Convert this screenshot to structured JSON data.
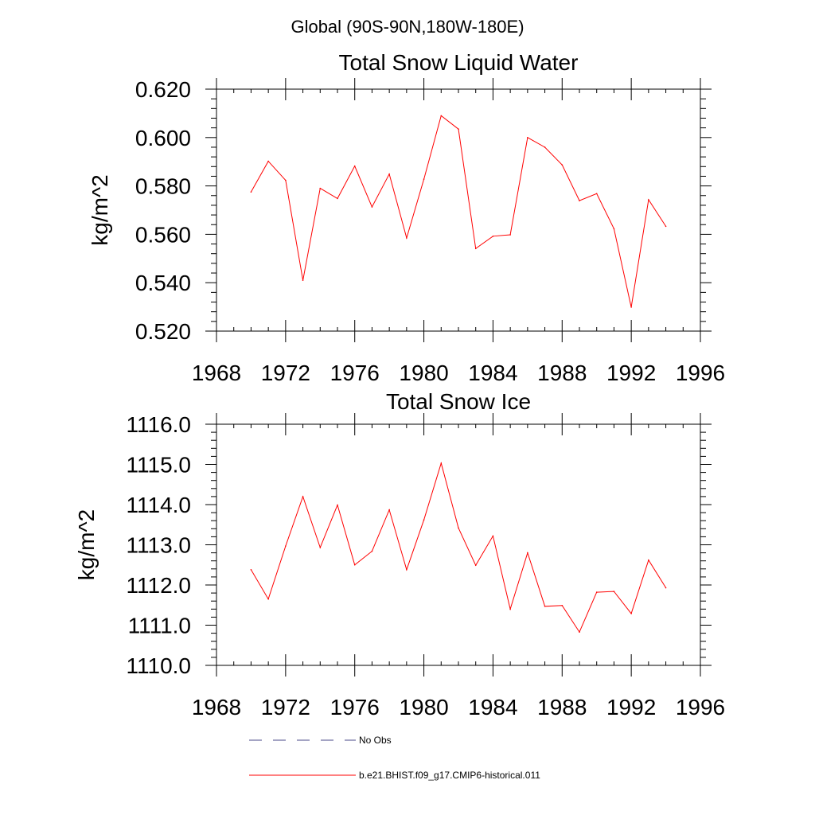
{
  "suptitle": "Global (90S-90N,180W-180E)",
  "colors": {
    "model": "#ff0000",
    "obs": "#4a4a8a",
    "axis": "#000000"
  },
  "legend": {
    "obs_label": "No Obs",
    "model_label": "b.e21.BHIST.f09_g17.CMIP6-historical.011"
  },
  "chart_data": [
    {
      "type": "line",
      "title": "Total Snow Liquid Water",
      "ylabel": "kg/m^2",
      "xlabel": "",
      "xlim": [
        1968,
        1996
      ],
      "ylim": [
        0.52,
        0.62
      ],
      "xticks": [
        1968,
        1972,
        1976,
        1980,
        1984,
        1988,
        1992,
        1996
      ],
      "xtick_labels": [
        "1968",
        "1972",
        "1976",
        "1980",
        "1984",
        "1988",
        "1992",
        "1996"
      ],
      "yticks": [
        0.52,
        0.54,
        0.56,
        0.58,
        0.6,
        0.62
      ],
      "ytick_labels": [
        "0.520",
        "0.540",
        "0.560",
        "0.580",
        "0.600",
        "0.620"
      ],
      "grid": false,
      "series": [
        {
          "name": "b.e21.BHIST.f09_g17.CMIP6-historical.011",
          "x": [
            1970,
            1971,
            1972,
            1973,
            1974,
            1975,
            1976,
            1977,
            1978,
            1979,
            1980,
            1981,
            1982,
            1983,
            1984,
            1985,
            1986,
            1987,
            1988,
            1989,
            1990,
            1991,
            1992,
            1993,
            1994
          ],
          "y": [
            0.5775,
            0.5902,
            0.5823,
            0.541,
            0.579,
            0.5748,
            0.5882,
            0.5713,
            0.5849,
            0.5585,
            0.5828,
            0.609,
            0.6035,
            0.5541,
            0.5592,
            0.5598,
            0.6,
            0.596,
            0.5887,
            0.5739,
            0.5768,
            0.5623,
            0.5299,
            0.5743,
            0.5633
          ]
        }
      ]
    },
    {
      "type": "line",
      "title": "Total Snow Ice",
      "ylabel": "kg/m^2",
      "xlabel": "",
      "xlim": [
        1968,
        1996
      ],
      "ylim": [
        1110.0,
        1116.0
      ],
      "xticks": [
        1968,
        1972,
        1976,
        1980,
        1984,
        1988,
        1992,
        1996
      ],
      "xtick_labels": [
        "1968",
        "1972",
        "1976",
        "1980",
        "1984",
        "1988",
        "1992",
        "1996"
      ],
      "yticks": [
        1110,
        1111,
        1112,
        1113,
        1114,
        1115,
        1116
      ],
      "ytick_labels": [
        "1110.0",
        "1111.0",
        "1112.0",
        "1113.0",
        "1114.0",
        "1115.0",
        "1116.0"
      ],
      "grid": false,
      "series": [
        {
          "name": "b.e21.BHIST.f09_g17.CMIP6-historical.011",
          "x": [
            1970,
            1971,
            1972,
            1973,
            1974,
            1975,
            1976,
            1977,
            1978,
            1979,
            1980,
            1981,
            1982,
            1983,
            1984,
            1985,
            1986,
            1987,
            1988,
            1989,
            1990,
            1991,
            1992,
            1993,
            1994
          ],
          "y": [
            1112.38,
            1111.65,
            1112.97,
            1114.2,
            1112.93,
            1113.99,
            1112.5,
            1112.84,
            1113.87,
            1112.38,
            1113.62,
            1115.03,
            1113.42,
            1112.49,
            1113.22,
            1111.4,
            1112.8,
            1111.47,
            1111.49,
            1110.83,
            1111.82,
            1111.84,
            1111.29,
            1112.62,
            1111.93
          ]
        }
      ]
    }
  ]
}
